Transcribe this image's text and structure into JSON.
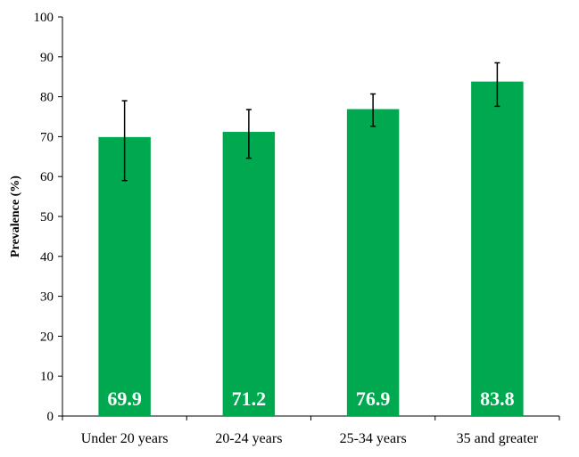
{
  "chart_data": {
    "type": "bar",
    "title": "",
    "xlabel": "",
    "ylabel": "Prevalence (%)",
    "ylim": [
      0,
      100
    ],
    "yticks": [
      0,
      10,
      20,
      30,
      40,
      50,
      60,
      70,
      80,
      90,
      100
    ],
    "grid": false,
    "legend": "none",
    "bar_color": "#00A94F",
    "categories": [
      "Under 20 years",
      "20-24 years",
      "25-34 years",
      "35 and greater"
    ],
    "values": [
      69.9,
      71.2,
      76.9,
      83.8
    ],
    "data_labels": [
      "69.9",
      "71.2",
      "76.9",
      "83.8"
    ],
    "error_low": [
      59.0,
      64.6,
      72.6,
      77.6
    ],
    "error_high": [
      79.0,
      76.8,
      80.7,
      88.5
    ]
  }
}
